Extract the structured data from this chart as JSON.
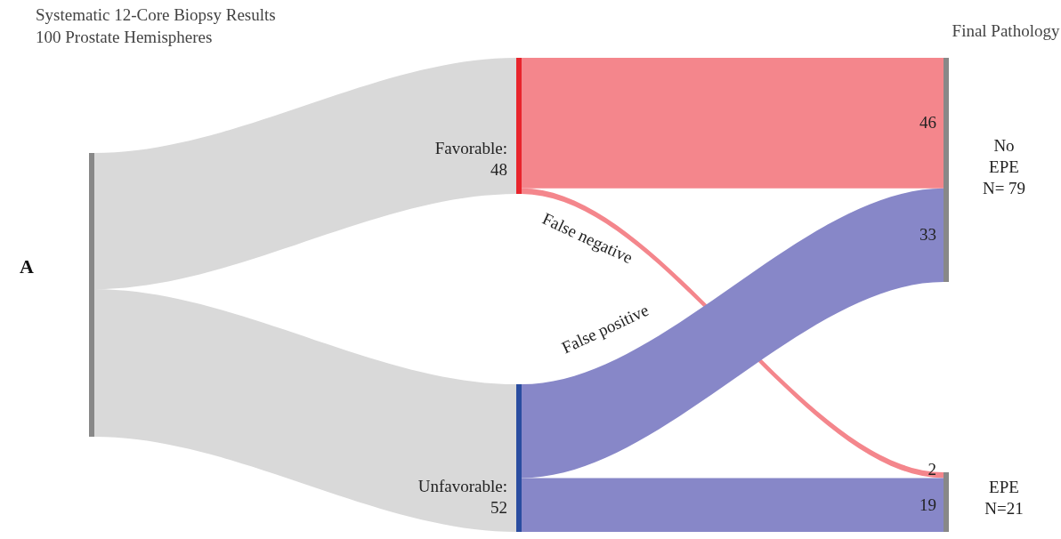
{
  "chart_data": {
    "type": "other",
    "title": "Systematic 12-Core Biopsy Results",
    "subtitle": "100 Prostate Hemispheres",
    "categories": [
      "No\nEPE\nN= 79",
      "EPE\nN=21"
    ],
    "series": [
      {
        "name": "Favorable:",
        "color": "#f4868c",
        "values": [
          46,
          2
        ]
      },
      {
        "name": "Unfavorable:",
        "color": "#8787c8",
        "values": [
          33,
          19
        ]
      }
    ],
    "totals": [
      "48",
      "52"
    ],
    "data_labels": true,
    "annotations": [
      "Final Pathology",
      "A",
      "False negative",
      "False positive"
    ]
  }
}
